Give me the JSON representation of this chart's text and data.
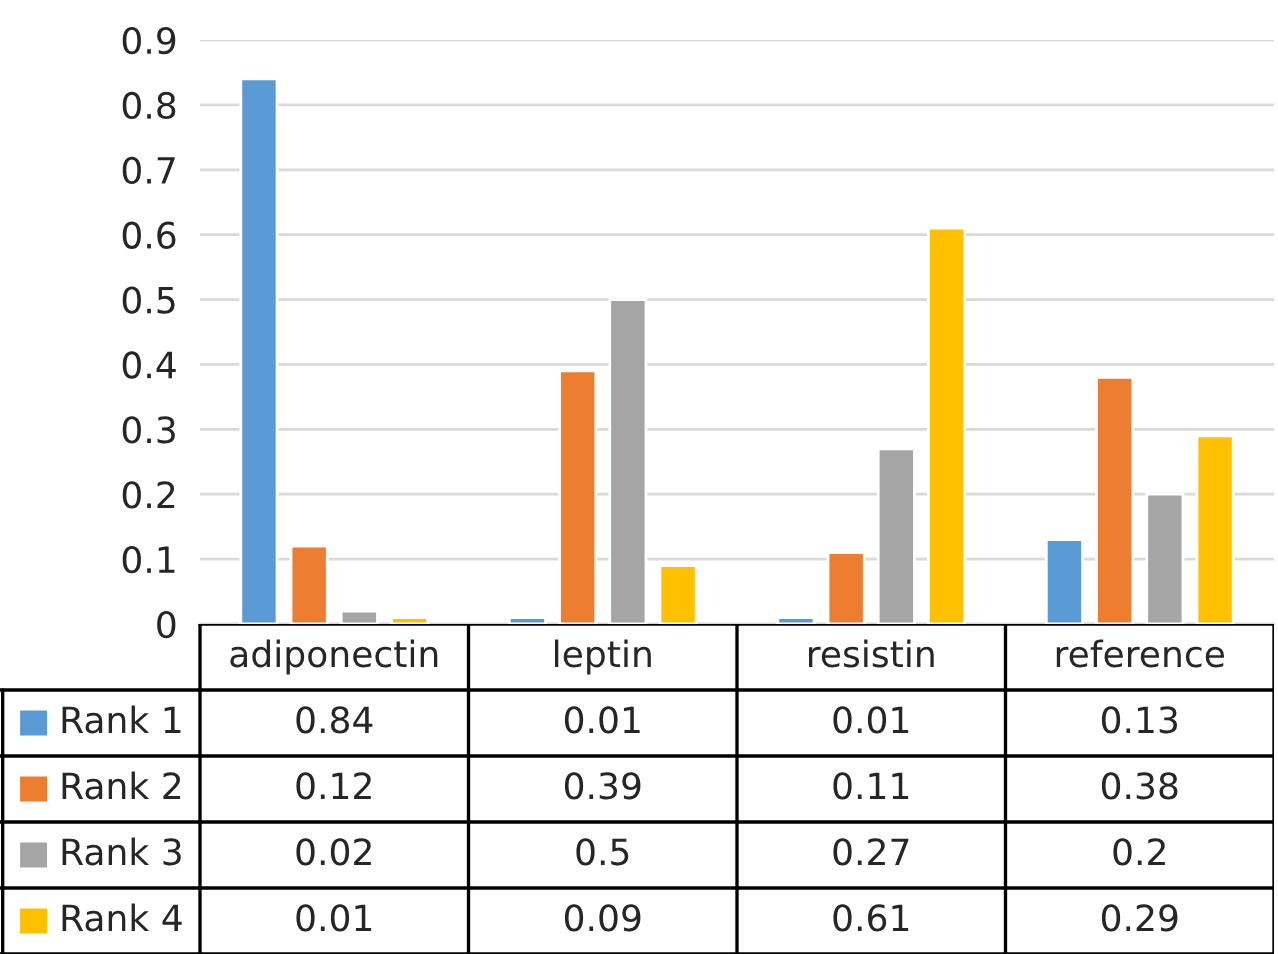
{
  "chart_data": {
    "type": "bar",
    "categories": [
      "adiponectin",
      "leptin",
      "resistin",
      "reference"
    ],
    "series": [
      {
        "name": "Rank 1",
        "color": "#5b9bd5",
        "values": [
          0.84,
          0.01,
          0.01,
          0.13
        ]
      },
      {
        "name": "Rank 2",
        "color": "#ed7d31",
        "values": [
          0.12,
          0.39,
          0.11,
          0.38
        ]
      },
      {
        "name": "Rank 3",
        "color": "#a5a5a5",
        "values": [
          0.02,
          0.5,
          0.27,
          0.2
        ]
      },
      {
        "name": "Rank 4",
        "color": "#ffc000",
        "values": [
          0.01,
          0.09,
          0.61,
          0.29
        ]
      }
    ],
    "ylim": [
      0,
      0.9
    ],
    "yticks": [
      0,
      0.1,
      0.2,
      0.3,
      0.4,
      0.5,
      0.6,
      0.7,
      0.8,
      0.9
    ],
    "grid": "y",
    "data_labels": true,
    "legend": "bottom left"
  }
}
